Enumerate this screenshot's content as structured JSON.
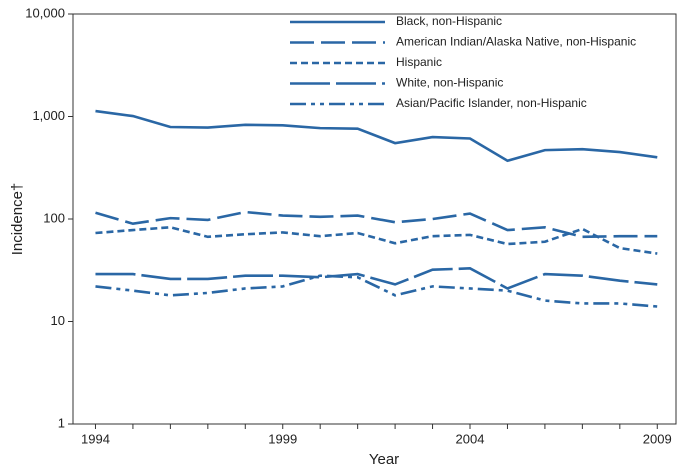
{
  "chart_data": {
    "type": "line",
    "log_scale": true,
    "xlabel": "Year",
    "ylabel": "Incidence†",
    "x": [
      1994,
      1995,
      1996,
      1997,
      1998,
      1999,
      2000,
      2001,
      2002,
      2003,
      2004,
      2005,
      2006,
      2007,
      2008,
      2009
    ],
    "xlim": [
      1993.4,
      2009.5
    ],
    "xticks": [
      1994,
      1999,
      2004,
      2009
    ],
    "ylim": [
      1,
      10000
    ],
    "yticks": [
      1,
      10,
      100,
      {
        "value": 1000,
        "label": "1,000"
      },
      {
        "value": 10000,
        "label": "10,000"
      }
    ],
    "legend": "upper right",
    "series": [
      {
        "name": "Black, non-Hispanic",
        "color": "#2a67a5",
        "dash": "none",
        "values": [
          1130,
          1010,
          790,
          780,
          830,
          820,
          770,
          760,
          550,
          630,
          610,
          370,
          470,
          480,
          450,
          400
        ]
      },
      {
        "name": "American Indian/Alaska Native, non-Hispanic",
        "color": "#2a67a5",
        "dash": "24,7",
        "values": [
          115,
          90,
          102,
          98,
          117,
          108,
          105,
          108,
          93,
          100,
          113,
          78,
          83,
          67,
          68,
          68
        ]
      },
      {
        "name": "Hispanic",
        "color": "#2a67a5",
        "dash": "7,4",
        "values": [
          73,
          78,
          83,
          67,
          71,
          74,
          68,
          73,
          58,
          68,
          70,
          57,
          60,
          80,
          52,
          46
        ]
      },
      {
        "name": "White, non-Hispanic",
        "color": "#2a67a5",
        "dash": "40,6",
        "values": [
          29,
          29,
          26,
          26,
          28,
          28,
          27,
          29,
          23,
          32,
          33,
          21,
          29,
          28,
          25,
          23
        ]
      },
      {
        "name": "Asian/Pacific Islander, non-Hispanic",
        "color": "#2a67a5",
        "dash": "16,5,4,5,4,5",
        "values": [
          22,
          20,
          18,
          19,
          21,
          22,
          28,
          27,
          18,
          22,
          21,
          20,
          16,
          15,
          15,
          14
        ]
      }
    ]
  }
}
